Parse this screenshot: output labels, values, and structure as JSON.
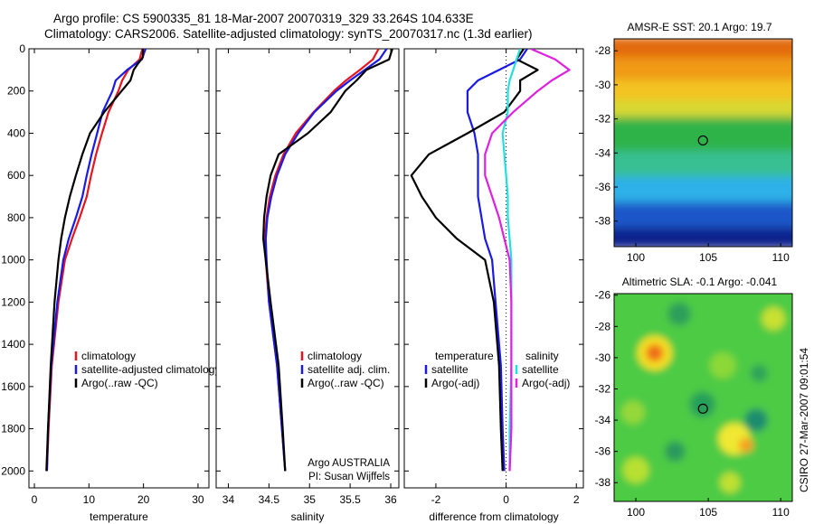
{
  "header": {
    "line1": "Argo profile: CS 5900335_81 18-Mar-2007 20070319_329 33.264S 104.633E",
    "line2": "Climatology: CARS2006. Satellite-adjusted climatology: synTS_20070317.nc (1.3d earlier)"
  },
  "colors": {
    "climatology": "#e8141e",
    "satellite": "#1a1ae6",
    "argo": "#000000",
    "sat_diff": "#22e0e0",
    "argo_adj": "#e020e0"
  },
  "credit": "CSIRO 27-Mar-2007 09:01:54",
  "chart_data": [
    {
      "type": "line",
      "xlabel": "temperature",
      "ylabel": "",
      "xlim": [
        -1,
        32
      ],
      "ylim": [
        2080,
        0
      ],
      "xticks": [
        0,
        10,
        20,
        30
      ],
      "xtick_labels": [
        "0",
        "10",
        "20",
        "30"
      ],
      "yticks": [
        0,
        200,
        400,
        600,
        800,
        1000,
        1200,
        1400,
        1600,
        1800,
        2000
      ],
      "ytick_labels": [
        "0",
        "200",
        "400",
        "600",
        "800",
        "1000",
        "1200",
        "1400",
        "1600",
        "1800",
        "2000"
      ],
      "legend": {
        "labels": [
          "climatology",
          "satellite-adjusted climatology",
          "Argo(..raw -QC)"
        ],
        "placement": "lower-right"
      },
      "series": [
        {
          "name": "climatology",
          "color": "climatology",
          "depth": [
            0,
            50,
            100,
            150,
            200,
            300,
            400,
            500,
            600,
            700,
            800,
            900,
            1000,
            1200,
            1500,
            1800,
            2000
          ],
          "values": [
            19.8,
            19.3,
            17.2,
            16.1,
            15.4,
            13.6,
            12.4,
            11.3,
            10.4,
            9.6,
            8.3,
            6.9,
            5.6,
            4.4,
            3.2,
            2.6,
            2.3
          ]
        },
        {
          "name": "satellite",
          "color": "satellite",
          "depth": [
            0,
            50,
            100,
            150,
            200,
            300,
            400,
            500,
            600,
            700,
            800,
            900,
            1000,
            1200,
            1500,
            1800,
            2000
          ],
          "values": [
            20.4,
            19.7,
            17.0,
            14.9,
            14.3,
            12.5,
            11.5,
            10.5,
            9.6,
            8.8,
            7.6,
            6.3,
            5.3,
            4.2,
            3.1,
            2.5,
            2.3
          ]
        },
        {
          "name": "Argo",
          "color": "argo",
          "depth": [
            0,
            40,
            70,
            100,
            150,
            200,
            300,
            400,
            500,
            600,
            700,
            800,
            900,
            1000,
            1200,
            1500,
            1800,
            2000
          ],
          "values": [
            19.9,
            19.9,
            19.0,
            18.2,
            17.6,
            16.0,
            12.8,
            10.2,
            8.8,
            7.6,
            6.5,
            5.6,
            4.9,
            4.4,
            3.7,
            3.0,
            2.5,
            2.2
          ]
        }
      ],
      "annotations": []
    },
    {
      "type": "line",
      "xlabel": "salinity",
      "ylabel": "",
      "xlim": [
        33.85,
        36.1
      ],
      "ylim": [
        2080,
        0
      ],
      "xticks": [
        34,
        34.5,
        35,
        35.5,
        36
      ],
      "xtick_labels": [
        "34",
        "34.5",
        "35",
        "35.5",
        "36"
      ],
      "legend": {
        "labels": [
          "climatology",
          "satellite adj. clim.",
          "Argo(..raw -QC)"
        ],
        "placement": "lower-right"
      },
      "series": [
        {
          "name": "climatology",
          "color": "climatology",
          "depth": [
            0,
            50,
            100,
            150,
            200,
            300,
            400,
            500,
            600,
            700,
            800,
            900,
            1000,
            1200,
            1500,
            1800,
            2000
          ],
          "values": [
            35.85,
            35.78,
            35.62,
            35.45,
            35.3,
            35.05,
            34.83,
            34.68,
            34.58,
            34.51,
            34.47,
            34.45,
            34.46,
            34.5,
            34.6,
            34.66,
            34.7
          ]
        },
        {
          "name": "satellite",
          "color": "satellite",
          "depth": [
            0,
            50,
            100,
            150,
            200,
            300,
            400,
            500,
            600,
            700,
            800,
            900,
            1000,
            1200,
            1500,
            1800,
            2000
          ],
          "values": [
            35.95,
            35.86,
            35.68,
            35.5,
            35.33,
            35.06,
            34.86,
            34.7,
            34.6,
            34.53,
            34.48,
            34.46,
            34.47,
            34.5,
            34.6,
            34.66,
            34.7
          ]
        },
        {
          "name": "Argo",
          "color": "argo",
          "depth": [
            0,
            50,
            100,
            150,
            200,
            300,
            400,
            500,
            600,
            700,
            800,
            900,
            1000,
            1200,
            1500,
            1800,
            2000
          ],
          "values": [
            36.02,
            35.98,
            35.7,
            35.58,
            35.44,
            35.26,
            34.98,
            34.62,
            34.52,
            34.47,
            34.44,
            34.43,
            34.46,
            34.52,
            34.62,
            34.67,
            34.7
          ]
        }
      ],
      "annotations": [
        "Argo AUSTRALIA",
        "PI: Susan Wijffels"
      ]
    },
    {
      "type": "line",
      "xlabel": "difference from climatology",
      "ylabel": "",
      "xlim": [
        -2.9,
        2.2
      ],
      "ylim": [
        2080,
        0
      ],
      "xticks": [
        -2,
        0,
        2
      ],
      "xtick_labels": [
        "-2",
        "0",
        "2"
      ],
      "zero_line": 0,
      "legend": {
        "labels": [
          "temperature",
          "satellite",
          "Argo(-adj)",
          "salinity",
          "satellite",
          "Argo(-adj)"
        ],
        "placement": "lower-center"
      },
      "series": [
        {
          "name": "temperature satellite",
          "color": "satellite",
          "depth": [
            0,
            50,
            100,
            150,
            200,
            300,
            400,
            500,
            600,
            700,
            800,
            900,
            1000,
            1200,
            1500,
            1800,
            2000
          ],
          "values": [
            0.6,
            0.4,
            -0.2,
            -0.8,
            -1.1,
            -1.1,
            -0.9,
            -0.8,
            -0.8,
            -0.8,
            -0.7,
            -0.6,
            -0.4,
            -0.3,
            -0.15,
            -0.1,
            -0.05
          ]
        },
        {
          "name": "temperature Argo(-adj)",
          "color": "argo",
          "depth": [
            0,
            50,
            100,
            150,
            200,
            300,
            400,
            500,
            600,
            700,
            800,
            900,
            1000,
            1200,
            1500,
            1800,
            2000
          ],
          "values": [
            0.5,
            0.3,
            0.9,
            0.4,
            0.4,
            -0.05,
            -1.1,
            -2.2,
            -2.7,
            -2.4,
            -2.0,
            -1.4,
            -0.6,
            -0.35,
            -0.2,
            -0.15,
            -0.1
          ]
        },
        {
          "name": "salinity satellite",
          "color": "sat_diff",
          "depth": [
            0,
            50,
            100,
            150,
            200,
            300,
            400,
            500,
            600,
            700,
            800,
            900,
            1000,
            1200,
            1500,
            1800,
            2000
          ],
          "values": [
            0.4,
            0.3,
            0.2,
            0.1,
            0.05,
            0.05,
            -0.1,
            -0.05,
            0.0,
            0.05,
            0.05,
            0.1,
            0.15,
            0.15,
            0.15,
            0.1,
            0.1
          ]
        },
        {
          "name": "salinity Argo(-adj)",
          "color": "argo_adj",
          "depth": [
            0,
            50,
            100,
            150,
            200,
            300,
            400,
            500,
            600,
            700,
            800,
            900,
            1000,
            1200,
            1500,
            1800,
            2000
          ],
          "values": [
            0.7,
            1.4,
            1.8,
            1.3,
            0.9,
            0.2,
            -0.4,
            -0.6,
            -0.6,
            -0.4,
            -0.2,
            -0.05,
            0.1,
            0.15,
            0.15,
            0.15,
            0.1
          ]
        }
      ],
      "annotations": []
    },
    {
      "type": "heatmap",
      "title": "AMSR-E SST: 20.1 Argo: 19.7",
      "xlabel": "",
      "ylabel": "",
      "xlim": [
        98.5,
        110.8
      ],
      "ylim": [
        -39.5,
        -27.3
      ],
      "xticks": [
        100,
        105,
        110
      ],
      "xtick_labels": [
        "100",
        "105",
        "110"
      ],
      "yticks": [
        -28,
        -30,
        -32,
        -34,
        -36,
        -38
      ],
      "ytick_labels": [
        "-28",
        "-30",
        "-32",
        "-34",
        "-36",
        "-38"
      ],
      "marker": {
        "lon": 104.633,
        "lat": -33.264
      },
      "color_bands": [
        {
          "lat_top": -27.3,
          "lat_bottom": -28.5,
          "color": "#e26a10"
        },
        {
          "lat_top": -28.5,
          "lat_bottom": -29.8,
          "color": "#f09a12"
        },
        {
          "lat_top": -29.8,
          "lat_bottom": -31.0,
          "color": "#f3c324"
        },
        {
          "lat_top": -31.0,
          "lat_bottom": -32.0,
          "color": "#d8d830"
        },
        {
          "lat_top": -32.0,
          "lat_bottom": -34.0,
          "color": "#2fb34a"
        },
        {
          "lat_top": -34.0,
          "lat_bottom": -35.5,
          "color": "#38c093"
        },
        {
          "lat_top": -35.5,
          "lat_bottom": -37.0,
          "color": "#2eb0e8"
        },
        {
          "lat_top": -37.0,
          "lat_bottom": -38.5,
          "color": "#1a56c8"
        },
        {
          "lat_top": -38.5,
          "lat_bottom": -39.5,
          "color": "#10208c"
        }
      ]
    },
    {
      "type": "heatmap",
      "title": "Altimetric SLA: -0.1 Argo: -0.041",
      "xlabel": "",
      "ylabel": "",
      "xlim": [
        98.5,
        110.8
      ],
      "ylim": [
        -39.2,
        -25.9
      ],
      "xticks": [
        100,
        105,
        110
      ],
      "xtick_labels": [
        "100",
        "105",
        "110"
      ],
      "yticks": [
        -26,
        -28,
        -30,
        -32,
        -34,
        -36,
        -38
      ],
      "ytick_labels": [
        "-26",
        "-28",
        "-30",
        "-32",
        "-34",
        "-36",
        "-38"
      ],
      "marker": {
        "lon": 104.633,
        "lat": -33.264
      },
      "background_color": "#4ecb44",
      "blobs": [
        {
          "lon": 101.3,
          "lat": -29.7,
          "radius_deg": 1.2,
          "color": "#f5e020"
        },
        {
          "lon": 101.3,
          "lat": -29.7,
          "radius_deg": 0.6,
          "color": "#f06d1c"
        },
        {
          "lon": 106.8,
          "lat": -35.2,
          "radius_deg": 1.1,
          "color": "#f0e830"
        },
        {
          "lon": 107.6,
          "lat": -35.6,
          "radius_deg": 0.5,
          "color": "#f7a020"
        },
        {
          "lon": 104.6,
          "lat": -33.0,
          "radius_deg": 0.9,
          "color": "#27a05a"
        },
        {
          "lon": 108.3,
          "lat": -34.0,
          "radius_deg": 0.8,
          "color": "#1b8c6e"
        },
        {
          "lon": 100.0,
          "lat": -37.2,
          "radius_deg": 0.9,
          "color": "#b8e030"
        },
        {
          "lon": 109.5,
          "lat": -27.5,
          "radius_deg": 0.8,
          "color": "#c8e030"
        },
        {
          "lon": 103.0,
          "lat": -27.2,
          "radius_deg": 0.8,
          "color": "#2e9f5a"
        },
        {
          "lon": 106.0,
          "lat": -30.5,
          "radius_deg": 0.9,
          "color": "#8cd838"
        },
        {
          "lon": 99.8,
          "lat": -33.5,
          "radius_deg": 0.8,
          "color": "#96d83a"
        },
        {
          "lon": 108.5,
          "lat": -31.0,
          "radius_deg": 0.6,
          "color": "#2ea45a"
        },
        {
          "lon": 102.7,
          "lat": -36.0,
          "radius_deg": 0.7,
          "color": "#2c9a5c"
        },
        {
          "lon": 106.5,
          "lat": -38.0,
          "radius_deg": 0.7,
          "color": "#c0e030"
        }
      ]
    }
  ]
}
